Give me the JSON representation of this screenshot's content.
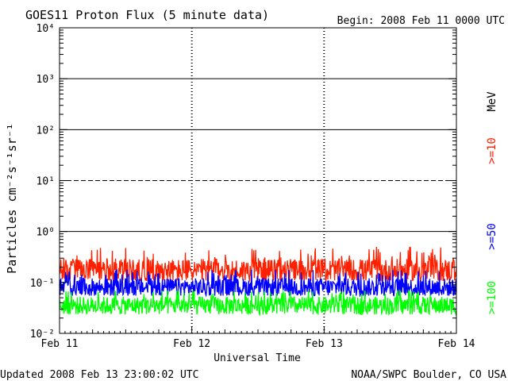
{
  "header": {
    "title": "GOES11 Proton Flux (5 minute data)",
    "begin": "Begin: 2008 Feb 11 0000 UTC"
  },
  "footer": {
    "updated": "Updated 2008 Feb 13 23:00:02 UTC",
    "credit": "NOAA/SWPC Boulder, CO USA"
  },
  "chart_data": {
    "type": "line",
    "title": "GOES11 Proton Flux (5 minute data)",
    "xlabel": "Universal Time",
    "ylabel": "Particles cm⁻²s⁻¹sr⁻¹",
    "y_scale": "log",
    "ylim": [
      0.01,
      10000
    ],
    "y_ticks": [
      {
        "value": 0.01,
        "label": "10⁻²"
      },
      {
        "value": 0.1,
        "label": "10⁻¹"
      },
      {
        "value": 1,
        "label": "10⁰"
      },
      {
        "value": 10,
        "label": "10¹"
      },
      {
        "value": 100,
        "label": "10²"
      },
      {
        "value": 1000,
        "label": "10³"
      },
      {
        "value": 10000,
        "label": "10⁴"
      }
    ],
    "x_ticks": [
      "Feb 11",
      "Feb 12",
      "Feb 13",
      "Feb 14"
    ],
    "xlim_days": [
      0,
      3
    ],
    "grid": true,
    "reference_lines": [
      {
        "value": 1,
        "style": "solid"
      },
      {
        "value": 10,
        "style": "dashed"
      },
      {
        "value": 100,
        "style": "solid"
      },
      {
        "value": 1000,
        "style": "solid"
      }
    ],
    "legend": "right",
    "series": [
      {
        "name": ">=10",
        "unit": "MeV",
        "color": "#ff2000",
        "typical": 0.17,
        "range": [
          0.11,
          0.5
        ]
      },
      {
        "name": ">=50",
        "color": "#0000ff",
        "typical": 0.08,
        "range": [
          0.055,
          0.18
        ]
      },
      {
        "name": ">=100",
        "color": "#00ff00",
        "typical": 0.035,
        "range": [
          0.022,
          0.07
        ]
      }
    ]
  }
}
